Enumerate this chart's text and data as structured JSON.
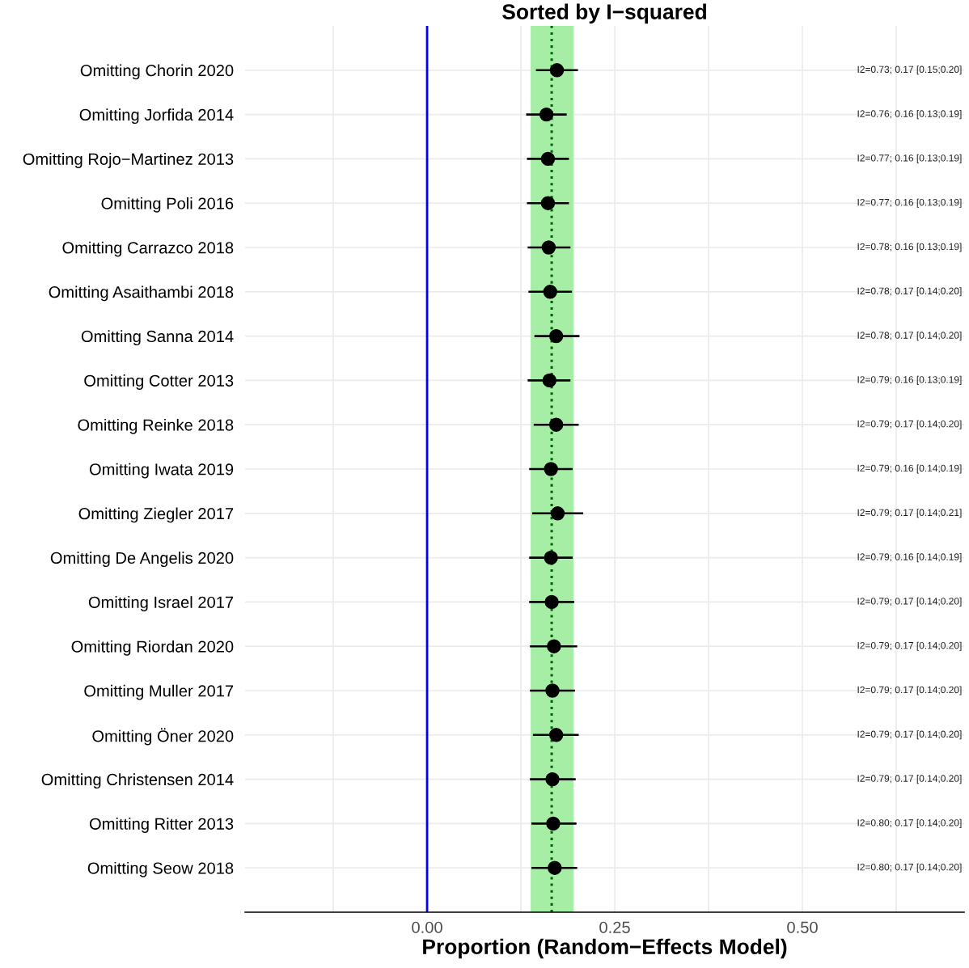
{
  "chart_data": {
    "type": "scatter",
    "orientation": "horizontal",
    "title": "Sorted by I−squared",
    "xlabel": "Proportion (Random−Effects Model)",
    "categories": [
      "Omitting Chorin 2020",
      "Omitting Jorfida 2014",
      "Omitting Rojo−Martinez 2013",
      "Omitting Poli 2016",
      "Omitting Carrazco 2018",
      "Omitting Asaithambi 2018",
      "Omitting Sanna 2014",
      "Omitting Cotter 2013",
      "Omitting Reinke 2018",
      "Omitting Iwata 2019",
      "Omitting Ziegler 2017",
      "Omitting De Angelis 2020",
      "Omitting Israel 2017",
      "Omitting Riordan 2020",
      "Omitting Muller 2017",
      "Omitting Öner 2020",
      "Omitting Christensen 2014",
      "Omitting Ritter 2013",
      "Omitting Seow 2018"
    ],
    "values": [
      0.173,
      0.159,
      0.161,
      0.161,
      0.162,
      0.164,
      0.172,
      0.163,
      0.172,
      0.165,
      0.174,
      0.165,
      0.166,
      0.169,
      0.167,
      0.172,
      0.167,
      0.168,
      0.17
    ],
    "errors": [
      [
        0.145,
        0.201
      ],
      [
        0.132,
        0.186
      ],
      [
        0.133,
        0.189
      ],
      [
        0.133,
        0.189
      ],
      [
        0.134,
        0.191
      ],
      [
        0.135,
        0.193
      ],
      [
        0.143,
        0.203
      ],
      [
        0.134,
        0.191
      ],
      [
        0.142,
        0.202
      ],
      [
        0.136,
        0.194
      ],
      [
        0.14,
        0.208
      ],
      [
        0.136,
        0.194
      ],
      [
        0.136,
        0.196
      ],
      [
        0.137,
        0.2
      ],
      [
        0.137,
        0.197
      ],
      [
        0.141,
        0.202
      ],
      [
        0.137,
        0.198
      ],
      [
        0.139,
        0.199
      ],
      [
        0.139,
        0.2
      ]
    ],
    "annotations": [
      "I2=0.73; 0.17 [0.15;0.20]",
      "I2=0.76; 0.16 [0.13;0.19]",
      "I2=0.77; 0.16 [0.13;0.19]",
      "I2=0.77; 0.16 [0.13;0.19]",
      "I2=0.78; 0.16 [0.13;0.19]",
      "I2=0.78; 0.17 [0.14;0.20]",
      "I2=0.78; 0.17 [0.14;0.20]",
      "I2=0.79; 0.16 [0.13;0.19]",
      "I2=0.79; 0.17 [0.14;0.20]",
      "I2=0.79; 0.16 [0.14;0.19]",
      "I2=0.79; 0.17 [0.14;0.21]",
      "I2=0.79; 0.16 [0.14;0.19]",
      "I2=0.79; 0.17 [0.14;0.20]",
      "I2=0.79; 0.17 [0.14;0.20]",
      "I2=0.79; 0.17 [0.14;0.20]",
      "I2=0.79; 0.17 [0.14;0.20]",
      "I2=0.79; 0.17 [0.14;0.20]",
      "I2=0.80; 0.17 [0.14;0.20]",
      "I2=0.80; 0.17 [0.14;0.20]"
    ],
    "color": "#000000",
    "marker": "circle",
    "xlim": [
      -0.2425,
      0.7155
    ],
    "xticks": [
      {
        "value": -0.125,
        "label": null
      },
      {
        "value": 0,
        "label": "0.00"
      },
      {
        "value": 0.125,
        "label": null
      },
      {
        "value": 0.25,
        "label": "0.25"
      },
      {
        "value": 0.375,
        "label": null
      },
      {
        "value": 0.5,
        "label": "0.50"
      },
      {
        "value": 0.625,
        "label": null
      }
    ],
    "ref_lines": [
      {
        "axis": "x",
        "value": 0,
        "label": null,
        "color": "#0000ff",
        "line_style": "solid"
      },
      {
        "axis": "x",
        "value": 0.166,
        "label": null,
        "color": "#006400",
        "line_style": "dotted"
      }
    ],
    "bands": [
      {
        "axis": "x",
        "from": 0.138,
        "to": 0.195,
        "label": null,
        "color": "#a6eea6"
      }
    ],
    "grid": true
  }
}
